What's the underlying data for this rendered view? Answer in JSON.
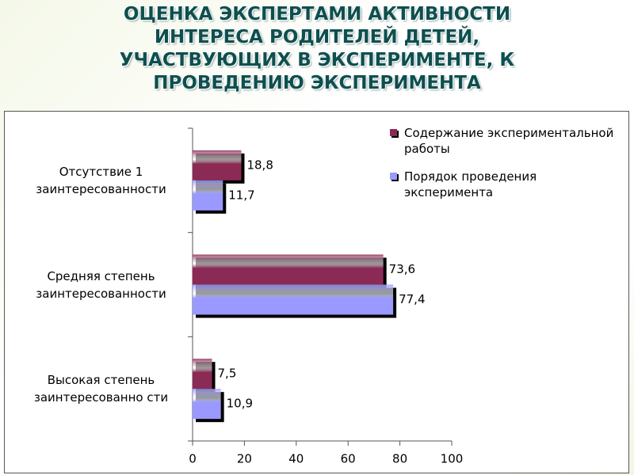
{
  "chart_data": {
    "type": "hbar",
    "title": "ОЦЕНКА ЭКСПЕРТАМИ АКТИВНОСТИ ИНТЕРЕСА РОДИТЕЛЕЙ ДЕТЕЙ, УЧАСТВУЮЩИХ В ЭКСПЕРИМЕНТЕ, К ПРОВЕДЕНИЮ ЭКСПЕРИМЕНТА",
    "categories": [
      "Отсутствие 1 заинтересованности",
      "Средняя степень заинтересованности",
      "Высокая степень заинтересованно сти"
    ],
    "series": [
      {
        "name": "Содержание экспериментальной работы",
        "color": "#8b2a55",
        "values": [
          18.8,
          73.6,
          7.5
        ],
        "value_labels": [
          "18,8",
          "73,6",
          "7,5"
        ]
      },
      {
        "name": "Порядок проведения эксперимента",
        "color": "#9999ff",
        "values": [
          11.7,
          77.4,
          10.9
        ],
        "value_labels": [
          "11,7",
          "77,4",
          "10,9"
        ]
      }
    ],
    "xlim": [
      0,
      100
    ],
    "xticks": [
      0,
      20,
      40,
      60,
      80,
      100
    ],
    "legend": "top-right"
  }
}
